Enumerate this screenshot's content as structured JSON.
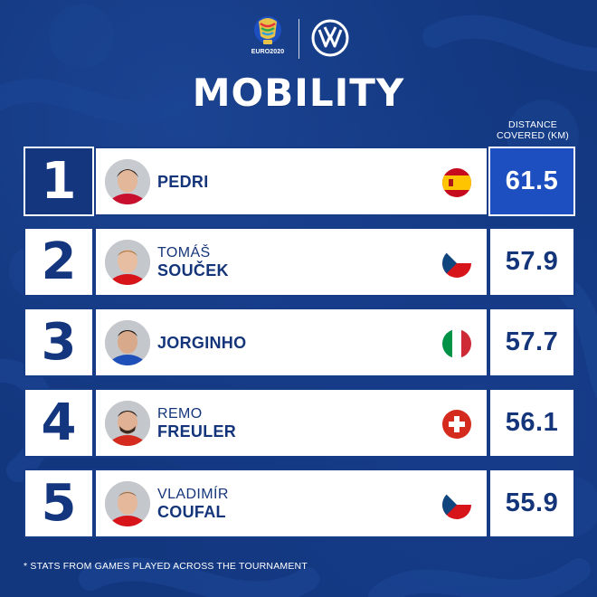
{
  "header": {
    "euro_logo_text": "EURO2020",
    "euro_logo_icon": "trophy-icon",
    "partner_logo_icon": "vw-logo-icon",
    "title": "MOBILITY"
  },
  "column_header": {
    "line1": "DISTANCE",
    "line2": "COVERED (KM)"
  },
  "colors": {
    "background": "#13377f",
    "navy": "#15357b",
    "highlight": "#1e4fc1",
    "white": "#ffffff"
  },
  "rows": [
    {
      "rank": "1",
      "first_name": "",
      "last_name": "PEDRI",
      "country": "Spain",
      "flag_icon": "spain-flag-icon",
      "distance": "61.5",
      "highlighted": true
    },
    {
      "rank": "2",
      "first_name": "TOMÁŠ",
      "last_name": "SOUČEK",
      "country": "Czech Republic",
      "flag_icon": "czech-flag-icon",
      "distance": "57.9",
      "highlighted": false
    },
    {
      "rank": "3",
      "first_name": "",
      "last_name": "JORGINHO",
      "country": "Italy",
      "flag_icon": "italy-flag-icon",
      "distance": "57.7",
      "highlighted": false
    },
    {
      "rank": "4",
      "first_name": "REMO",
      "last_name": "FREULER",
      "country": "Switzerland",
      "flag_icon": "switzerland-flag-icon",
      "distance": "56.1",
      "highlighted": false
    },
    {
      "rank": "5",
      "first_name": "VLADIMÍR",
      "last_name": "COUFAL",
      "country": "Czech Republic",
      "flag_icon": "czech-flag-icon",
      "distance": "55.9",
      "highlighted": false
    }
  ],
  "footnote": "* STATS FROM GAMES PLAYED ACROSS THE TOURNAMENT"
}
